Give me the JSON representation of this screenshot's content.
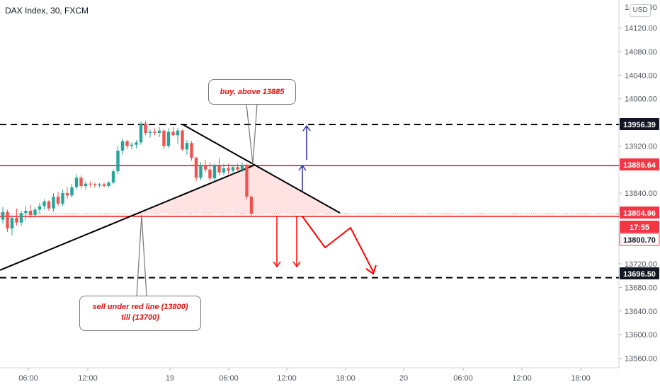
{
  "header": {
    "title": "DAX Index, 30, FXCM",
    "currency_button": "USD"
  },
  "annotations": {
    "buy_note": "buy, above 13885",
    "sell_note_line1": "sell under red line (13800)",
    "sell_note_line2": "till (13700)"
  },
  "colors": {
    "up": "#26a69a",
    "down": "#ef5350",
    "red_line": "#ff0000",
    "trend_line": "#000000",
    "arrow_blue": "#2a2aa8",
    "triangle_fill": "#ffdede"
  },
  "chart_data": {
    "type": "candlestick",
    "title": "DAX Index, 30, FXCM",
    "y_ticks": [
      14120,
      14080,
      14040,
      14000,
      13920,
      13840,
      13720,
      13680,
      13640,
      13600,
      13560
    ],
    "x_ticks": [
      "06:00",
      "12:00",
      "19",
      "06:00",
      "12:00",
      "18:00",
      "20",
      "06:00",
      "12:00",
      "18:00"
    ],
    "price_labels": [
      {
        "value": "13956.39",
        "style": "dark"
      },
      {
        "value": "13886.64",
        "style": "red"
      },
      {
        "value": "13804.96",
        "style": "red"
      },
      {
        "value": "17:55",
        "style": "red"
      },
      {
        "value": "13800.70",
        "style": "red_outline"
      },
      {
        "value": "13696.50",
        "style": "dark"
      }
    ],
    "horizontal_levels": [
      {
        "price": 13956.39,
        "style": "black-dashed"
      },
      {
        "price": 13886.64,
        "style": "red-solid"
      },
      {
        "price": 13800.7,
        "style": "red-solid"
      },
      {
        "price": 13804.96,
        "style": "last-price-dotted"
      },
      {
        "price": 13696.5,
        "style": "black-dashed"
      }
    ],
    "candles": [
      [
        13795,
        13816,
        13788,
        13808
      ],
      [
        13808,
        13812,
        13774,
        13780
      ],
      [
        13780,
        13802,
        13768,
        13798
      ],
      [
        13798,
        13814,
        13785,
        13790
      ],
      [
        13790,
        13810,
        13784,
        13806
      ],
      [
        13806,
        13818,
        13794,
        13810
      ],
      [
        13810,
        13820,
        13798,
        13803
      ],
      [
        13803,
        13816,
        13798,
        13812
      ],
      [
        13812,
        13824,
        13805,
        13818
      ],
      [
        13818,
        13830,
        13812,
        13826
      ],
      [
        13826,
        13828,
        13810,
        13814
      ],
      [
        13814,
        13840,
        13808,
        13834
      ],
      [
        13834,
        13842,
        13818,
        13822
      ],
      [
        13822,
        13846,
        13818,
        13840
      ],
      [
        13840,
        13850,
        13830,
        13836
      ],
      [
        13836,
        13856,
        13832,
        13850
      ],
      [
        13850,
        13872,
        13846,
        13866
      ],
      [
        13866,
        13870,
        13848,
        13852
      ],
      [
        13852,
        13860,
        13846,
        13856
      ],
      [
        13856,
        13860,
        13850,
        13855
      ],
      [
        13855,
        13858,
        13849,
        13853
      ],
      [
        13853,
        13857,
        13850,
        13855
      ],
      [
        13855,
        13858,
        13850,
        13852
      ],
      [
        13852,
        13860,
        13850,
        13858
      ],
      [
        13858,
        13880,
        13855,
        13877
      ],
      [
        13877,
        13920,
        13872,
        13912
      ],
      [
        13912,
        13932,
        13905,
        13928
      ],
      [
        13928,
        13930,
        13915,
        13920
      ],
      [
        13920,
        13926,
        13914,
        13922
      ],
      [
        13922,
        13930,
        13916,
        13926
      ],
      [
        13926,
        13962,
        13922,
        13958
      ],
      [
        13958,
        13962,
        13938,
        13942
      ],
      [
        13942,
        13948,
        13934,
        13944
      ],
      [
        13944,
        13950,
        13938,
        13942
      ],
      [
        13942,
        13952,
        13935,
        13946
      ],
      [
        13946,
        13948,
        13915,
        13920
      ],
      [
        13920,
        13950,
        13916,
        13944
      ],
      [
        13944,
        13952,
        13936,
        13938
      ],
      [
        13938,
        13950,
        13924,
        13946
      ],
      [
        13946,
        13948,
        13912,
        13914
      ],
      [
        13914,
        13930,
        13905,
        13925
      ],
      [
        13925,
        13928,
        13895,
        13900
      ],
      [
        13900,
        13902,
        13860,
        13866
      ],
      [
        13866,
        13892,
        13862,
        13888
      ],
      [
        13888,
        13896,
        13875,
        13880
      ],
      [
        13880,
        13892,
        13860,
        13865
      ],
      [
        13865,
        13890,
        13860,
        13886
      ],
      [
        13886,
        13900,
        13870,
        13875
      ],
      [
        13875,
        13890,
        13870,
        13882
      ],
      [
        13882,
        13890,
        13872,
        13878
      ],
      [
        13878,
        13886,
        13872,
        13884
      ],
      [
        13884,
        13890,
        13876,
        13880
      ],
      [
        13880,
        13892,
        13876,
        13888
      ],
      [
        13888,
        13890,
        13830,
        13834
      ],
      [
        13834,
        13836,
        13800,
        13805
      ]
    ]
  }
}
